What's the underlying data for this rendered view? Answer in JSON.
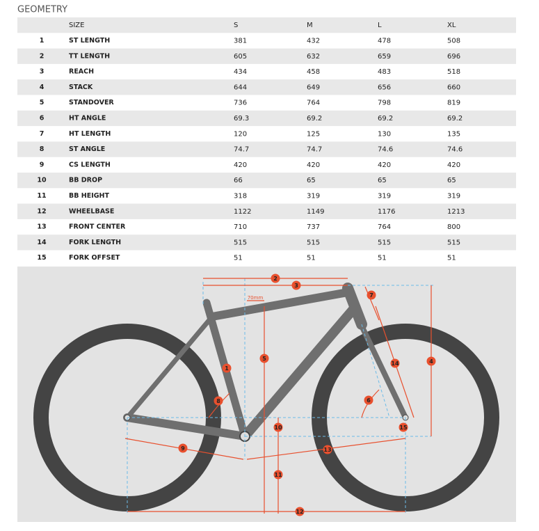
{
  "title": "GEOMETRY",
  "table": {
    "header": [
      "SIZE",
      "S",
      "M",
      "L",
      "XL"
    ],
    "rows": [
      [
        1,
        "ST LENGTH",
        381,
        432,
        478,
        508
      ],
      [
        2,
        "TT LENGTH",
        605,
        632,
        659,
        696
      ],
      [
        3,
        "REACH",
        434,
        458,
        483,
        518
      ],
      [
        4,
        "STACK",
        644,
        649,
        656,
        660
      ],
      [
        5,
        "STANDOVER",
        736,
        764,
        798,
        819
      ],
      [
        6,
        "HT ANGLE",
        69.3,
        69.2,
        69.2,
        69.2
      ],
      [
        7,
        "HT LENGTH",
        120,
        125,
        130,
        135
      ],
      [
        8,
        "ST ANGLE",
        74.7,
        74.7,
        74.6,
        74.6
      ],
      [
        9,
        "CS LENGTH",
        420,
        420,
        420,
        420
      ],
      [
        10,
        "BB DROP",
        66,
        65,
        65,
        65
      ],
      [
        11,
        "BB HEIGHT",
        318,
        319,
        319,
        319
      ],
      [
        12,
        "WHEELBASE",
        1122,
        1149,
        1176,
        1213
      ],
      [
        13,
        "FRONT CENTER",
        710,
        737,
        764,
        800
      ],
      [
        14,
        "FORK LENGTH",
        515,
        515,
        515,
        515
      ],
      [
        15,
        "FORK OFFSET",
        51,
        51,
        51,
        51
      ]
    ]
  },
  "diagram": {
    "markers": [
      "1",
      "2",
      "3",
      "4",
      "5",
      "6",
      "7",
      "8",
      "9",
      "10",
      "11",
      "12",
      "13",
      "14",
      "15"
    ],
    "note": "70mm"
  }
}
